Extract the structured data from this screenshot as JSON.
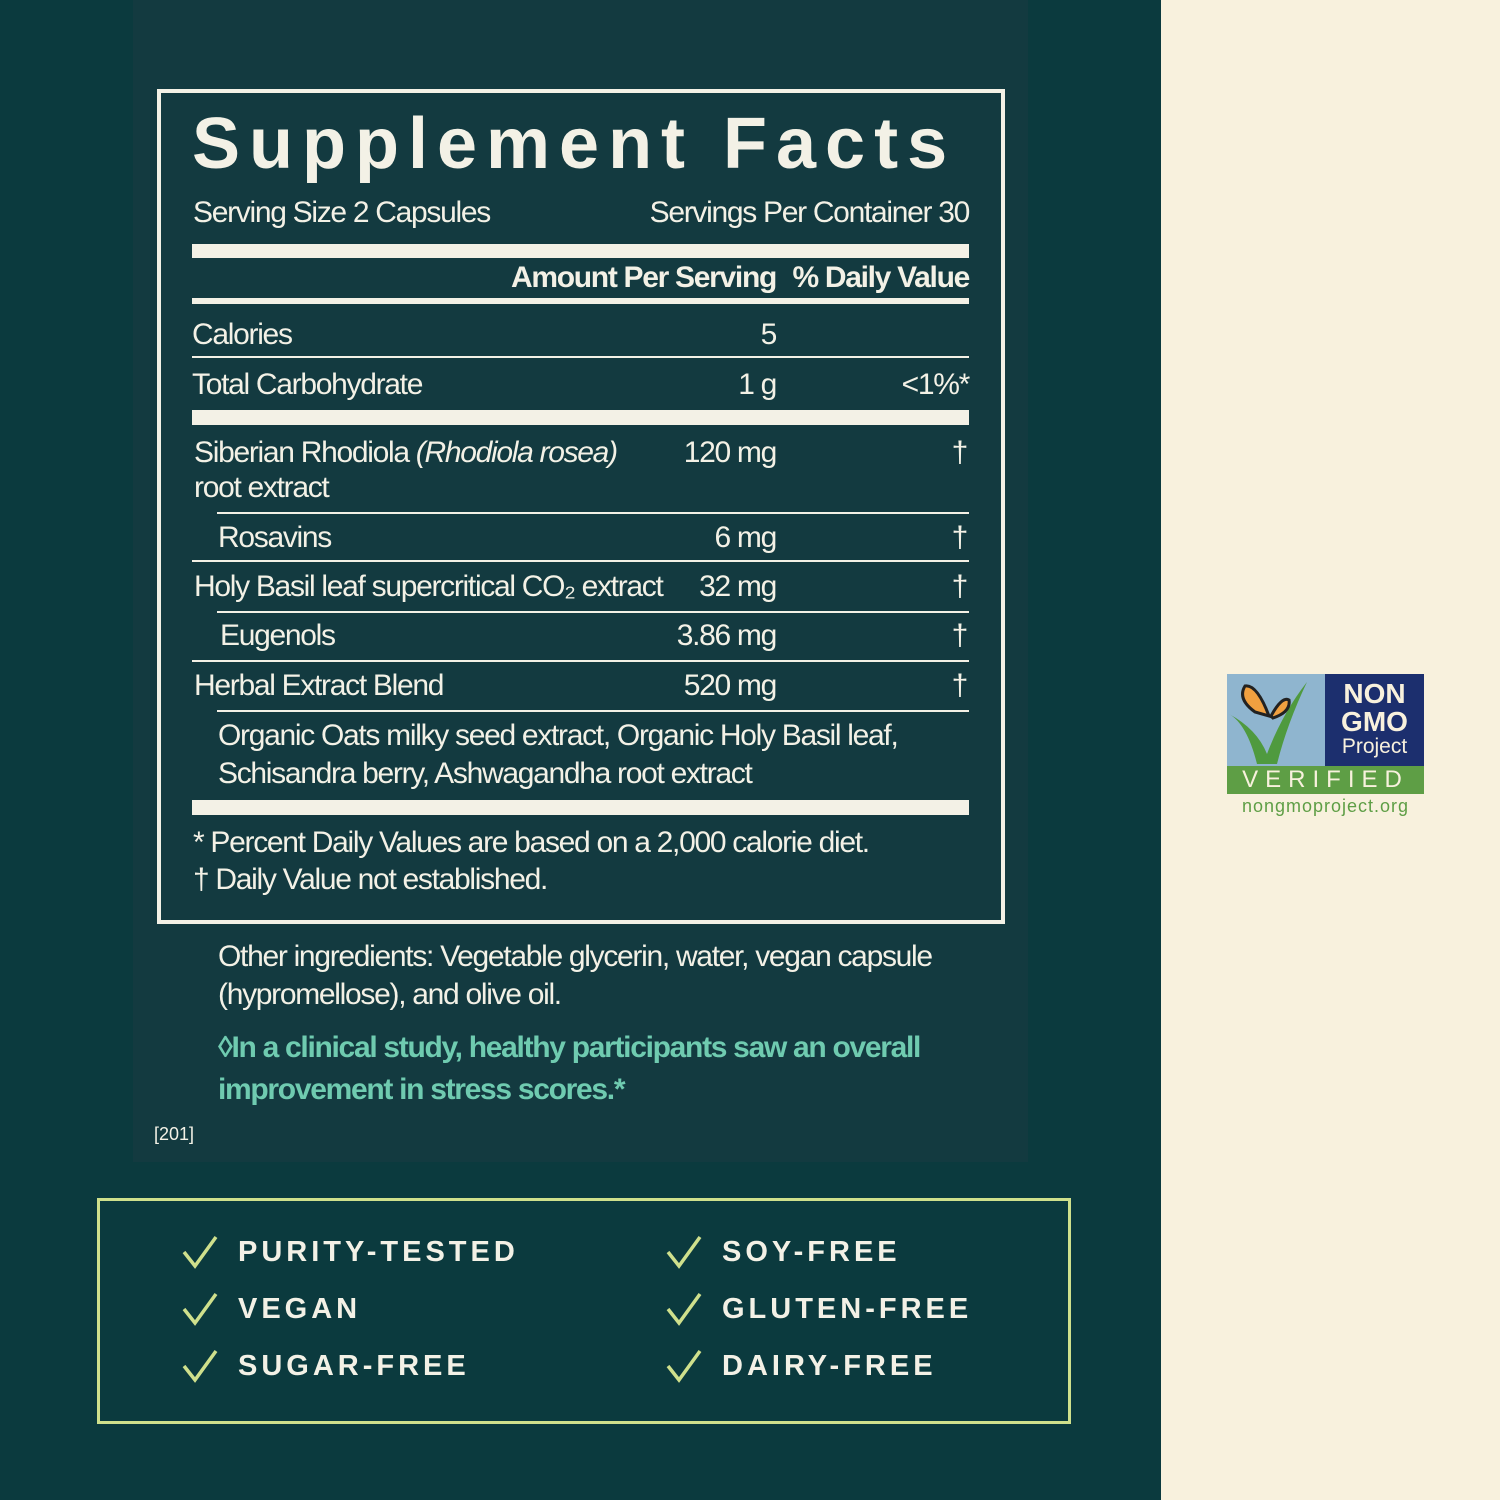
{
  "facts": {
    "title": "Supplement Facts",
    "serving_size": "Serving Size 2 Capsules",
    "servings_per_container": "Servings Per Container 30",
    "col_amount": "Amount Per Serving",
    "col_dv": "% Daily Value",
    "rows": [
      {
        "name": "Calories",
        "amount": "5",
        "dv": ""
      },
      {
        "name": "Total Carbohydrate",
        "amount": "1 g",
        "dv": "<1%*"
      },
      {
        "name": "Siberian Rhodiola",
        "name_italic": "(Rhodiola rosea)",
        "name_line2": "root extract",
        "amount": "120 mg",
        "dv": "†"
      },
      {
        "name": "Rosavins",
        "amount": "6 mg",
        "dv": "†"
      },
      {
        "name": "Holy Basil leaf supercritical CO₂ extract",
        "amount": "32 mg",
        "dv": "†"
      },
      {
        "name": "Eugenols",
        "amount": "3.86 mg",
        "dv": "†"
      },
      {
        "name": "Herbal Extract Blend",
        "amount": "520 mg",
        "dv": "†"
      }
    ],
    "blend_line1": "Organic Oats milky seed extract, Organic Holy Basil leaf,",
    "blend_line2": "Schisandra berry, Ashwagandha root extract",
    "footnote1": "* Percent Daily Values are based on a 2,000 calorie diet.",
    "footnote2": "† Daily Value not established."
  },
  "other_ingredients_line1": "Other ingredients: Vegetable glycerin, water, vegan capsule",
  "other_ingredients_line2": "(hypromellose), and olive oil.",
  "claim_line1": "◊In a clinical study, healthy participants saw an overall",
  "claim_line2": "improvement in stress scores.*",
  "code": "[201]",
  "badges": [
    "PURITY-TESTED",
    "VEGAN",
    "SUGAR-FREE",
    "SOY-FREE",
    "GLUTEN-FREE",
    "DAIRY-FREE"
  ],
  "logo": {
    "line1": "NON",
    "line2": "GMO",
    "line3": "Project",
    "verified": "VERIFIED",
    "url": "nongmoproject.org"
  },
  "colors": {
    "background": "#0b3a3e",
    "cream": "#f8f1dd",
    "check": "#cfe08c",
    "claim": "#6fcbb0"
  }
}
